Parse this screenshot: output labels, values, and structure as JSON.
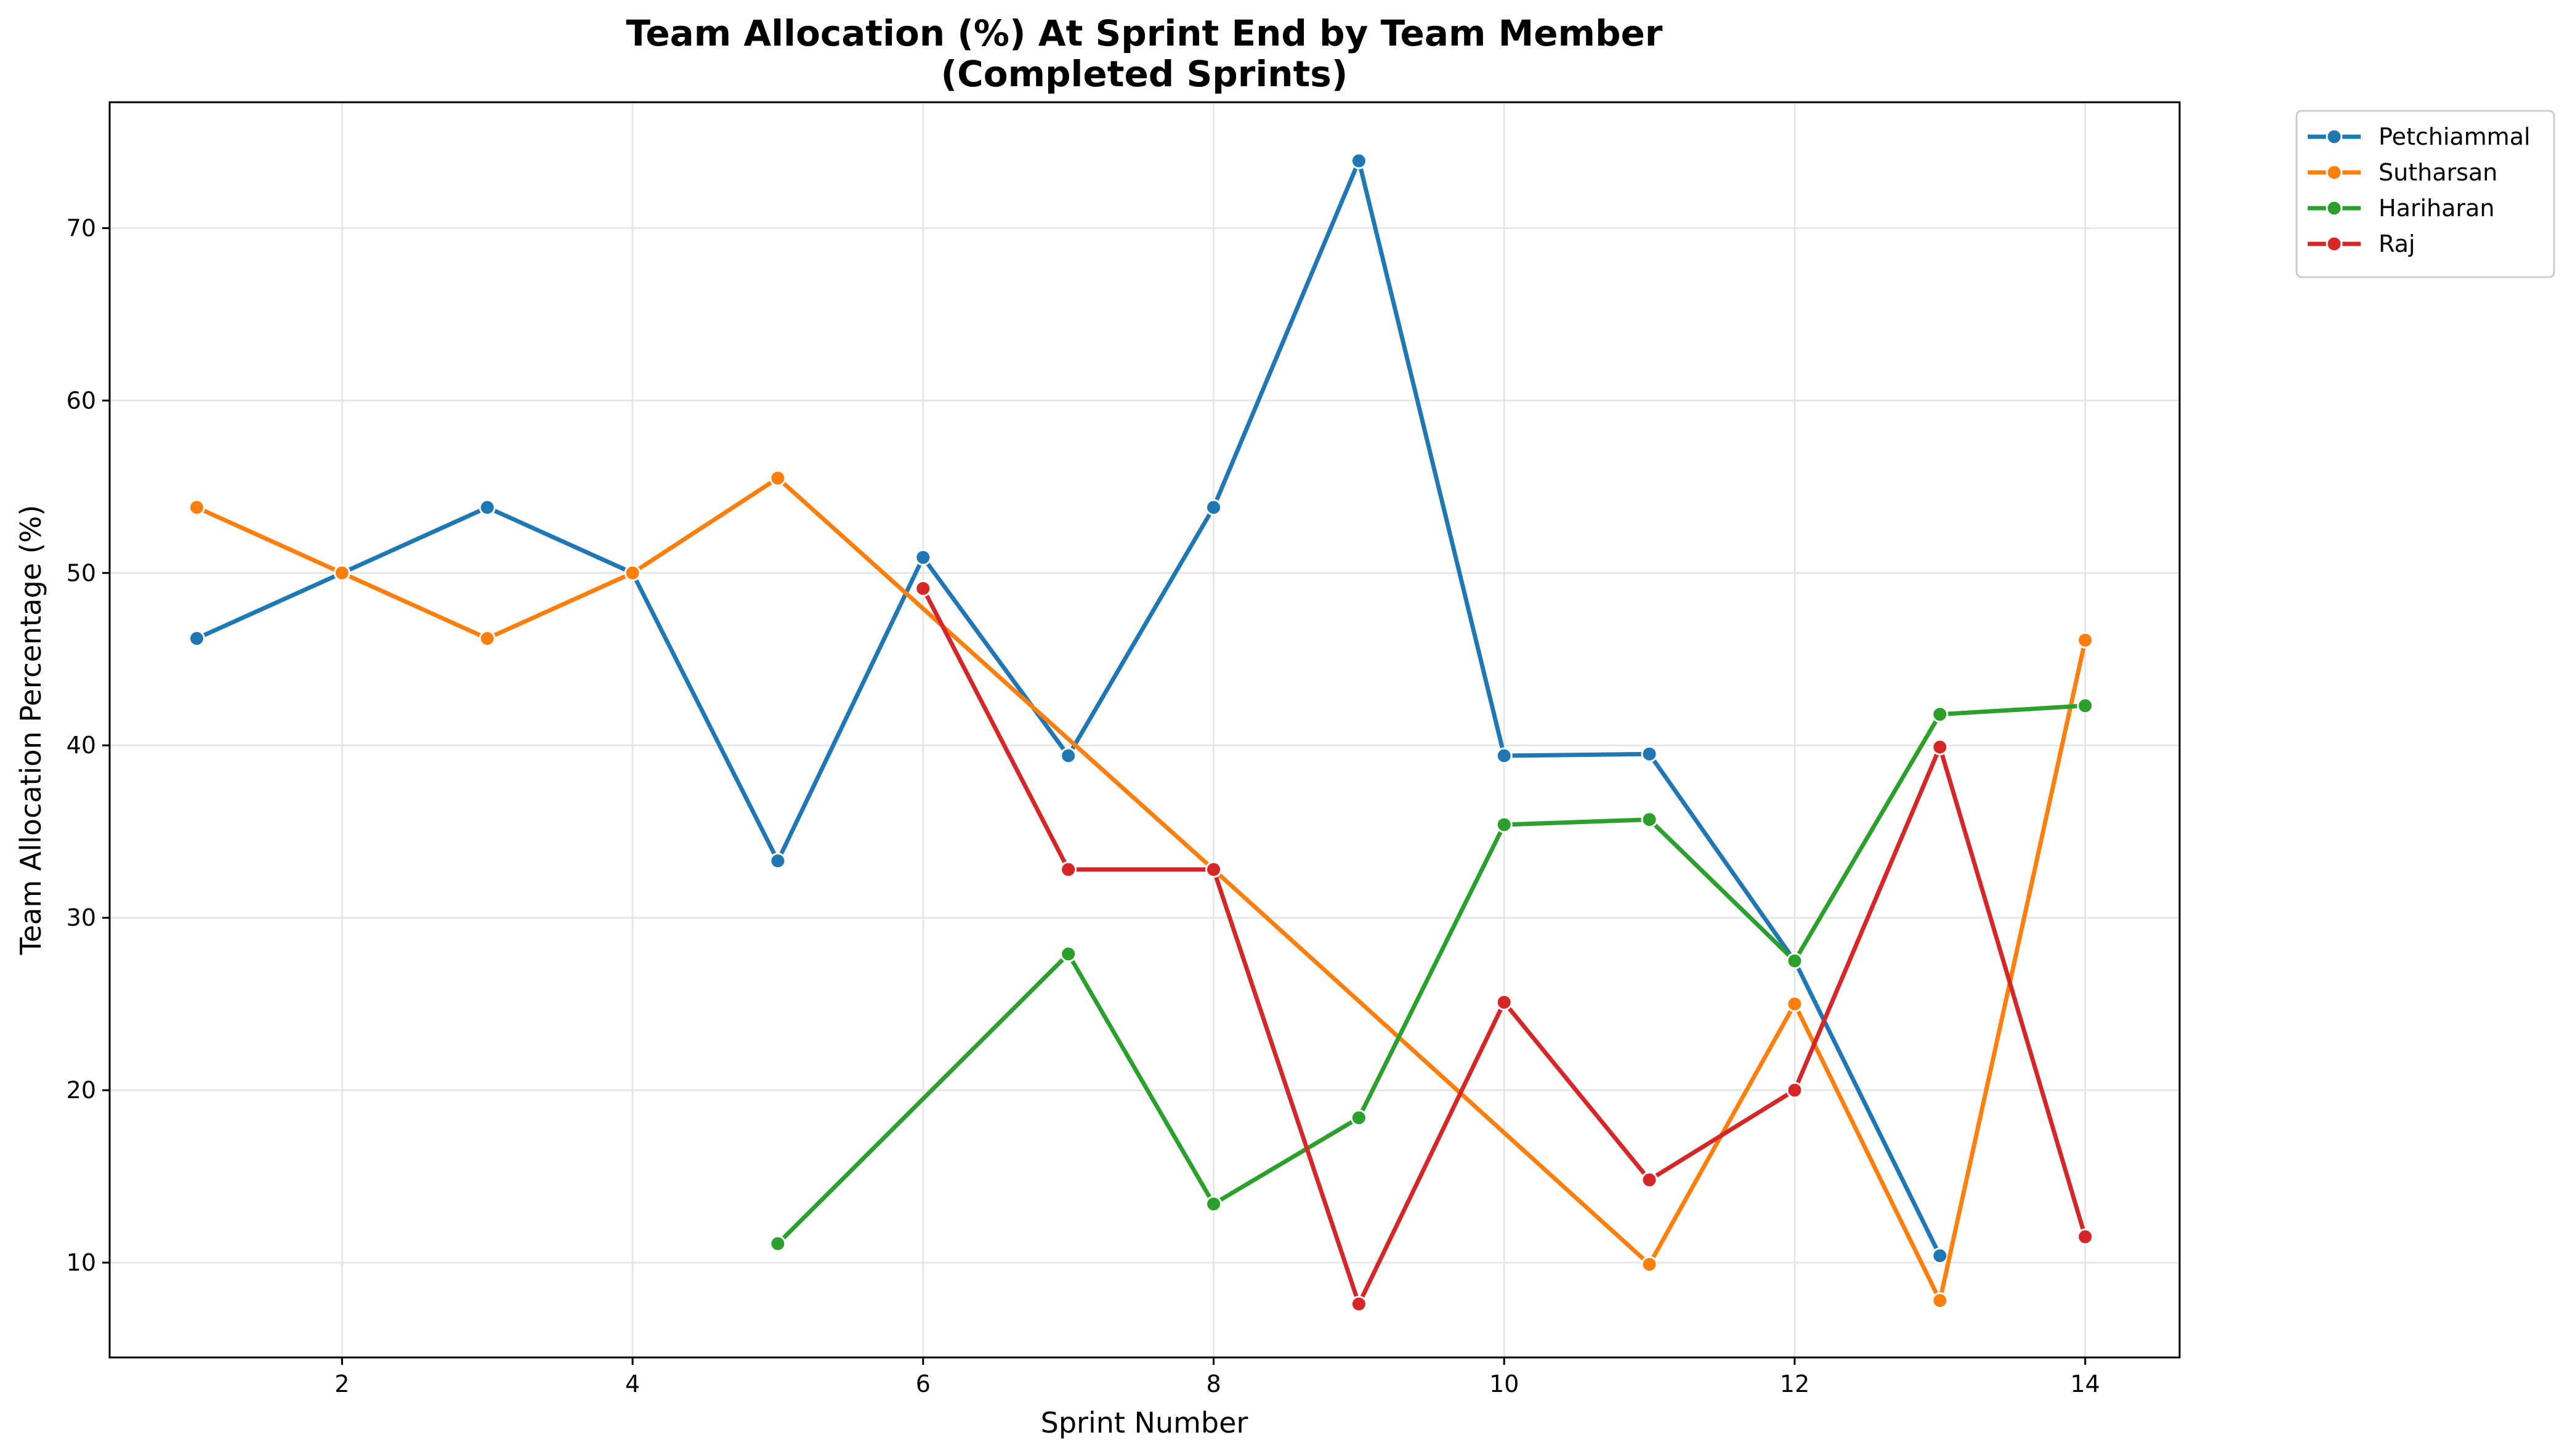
{
  "chart_data": {
    "type": "line",
    "title": "Team Allocation (%) At Sprint End by Team Member",
    "subtitle": "(Completed Sprints)",
    "xlabel": "Sprint Number",
    "ylabel": "Team Allocation Percentage (%)",
    "xlim": [
      0.4,
      14.65
    ],
    "ylim": [
      4.5,
      77.3
    ],
    "xticks": [
      2,
      4,
      6,
      8,
      10,
      12,
      14
    ],
    "yticks": [
      10,
      20,
      30,
      40,
      50,
      60,
      70
    ],
    "grid": true,
    "legend_position": "outside-top-right",
    "series": [
      {
        "name": "Petchiammal",
        "color": "#1f77b4",
        "points": [
          [
            1,
            46.2
          ],
          [
            2,
            50.0
          ],
          [
            3,
            53.8
          ],
          [
            4,
            50.0
          ],
          [
            5,
            33.3
          ],
          [
            6,
            50.9
          ],
          [
            7,
            39.4
          ],
          [
            8,
            53.8
          ],
          [
            9,
            73.9
          ],
          [
            10,
            39.4
          ],
          [
            11,
            39.5
          ],
          [
            12,
            27.5
          ],
          [
            13,
            10.4
          ]
        ]
      },
      {
        "name": "Sutharsan",
        "color": "#ff7f0e",
        "points": [
          [
            1,
            53.8
          ],
          [
            2,
            50.0
          ],
          [
            3,
            46.2
          ],
          [
            4,
            50.0
          ],
          [
            5,
            55.5
          ],
          [
            8,
            32.8
          ],
          [
            11,
            9.9
          ],
          [
            12,
            25.0
          ],
          [
            13,
            7.8
          ],
          [
            14,
            46.1
          ]
        ]
      },
      {
        "name": "Hariharan",
        "color": "#2ca02c",
        "points": [
          [
            5,
            11.1
          ],
          [
            7,
            27.9
          ],
          [
            8,
            13.4
          ],
          [
            9,
            18.4
          ],
          [
            10,
            35.4
          ],
          [
            11,
            35.7
          ],
          [
            12,
            27.5
          ],
          [
            13,
            41.8
          ],
          [
            14,
            42.3
          ]
        ]
      },
      {
        "name": "Raj",
        "color": "#d62728",
        "points": [
          [
            6,
            49.1
          ],
          [
            7,
            32.8
          ],
          [
            8,
            32.8
          ],
          [
            9,
            7.6
          ],
          [
            10,
            25.1
          ],
          [
            11,
            14.8
          ],
          [
            12,
            20.0
          ],
          [
            13,
            39.9
          ],
          [
            14,
            11.5
          ]
        ]
      }
    ]
  }
}
